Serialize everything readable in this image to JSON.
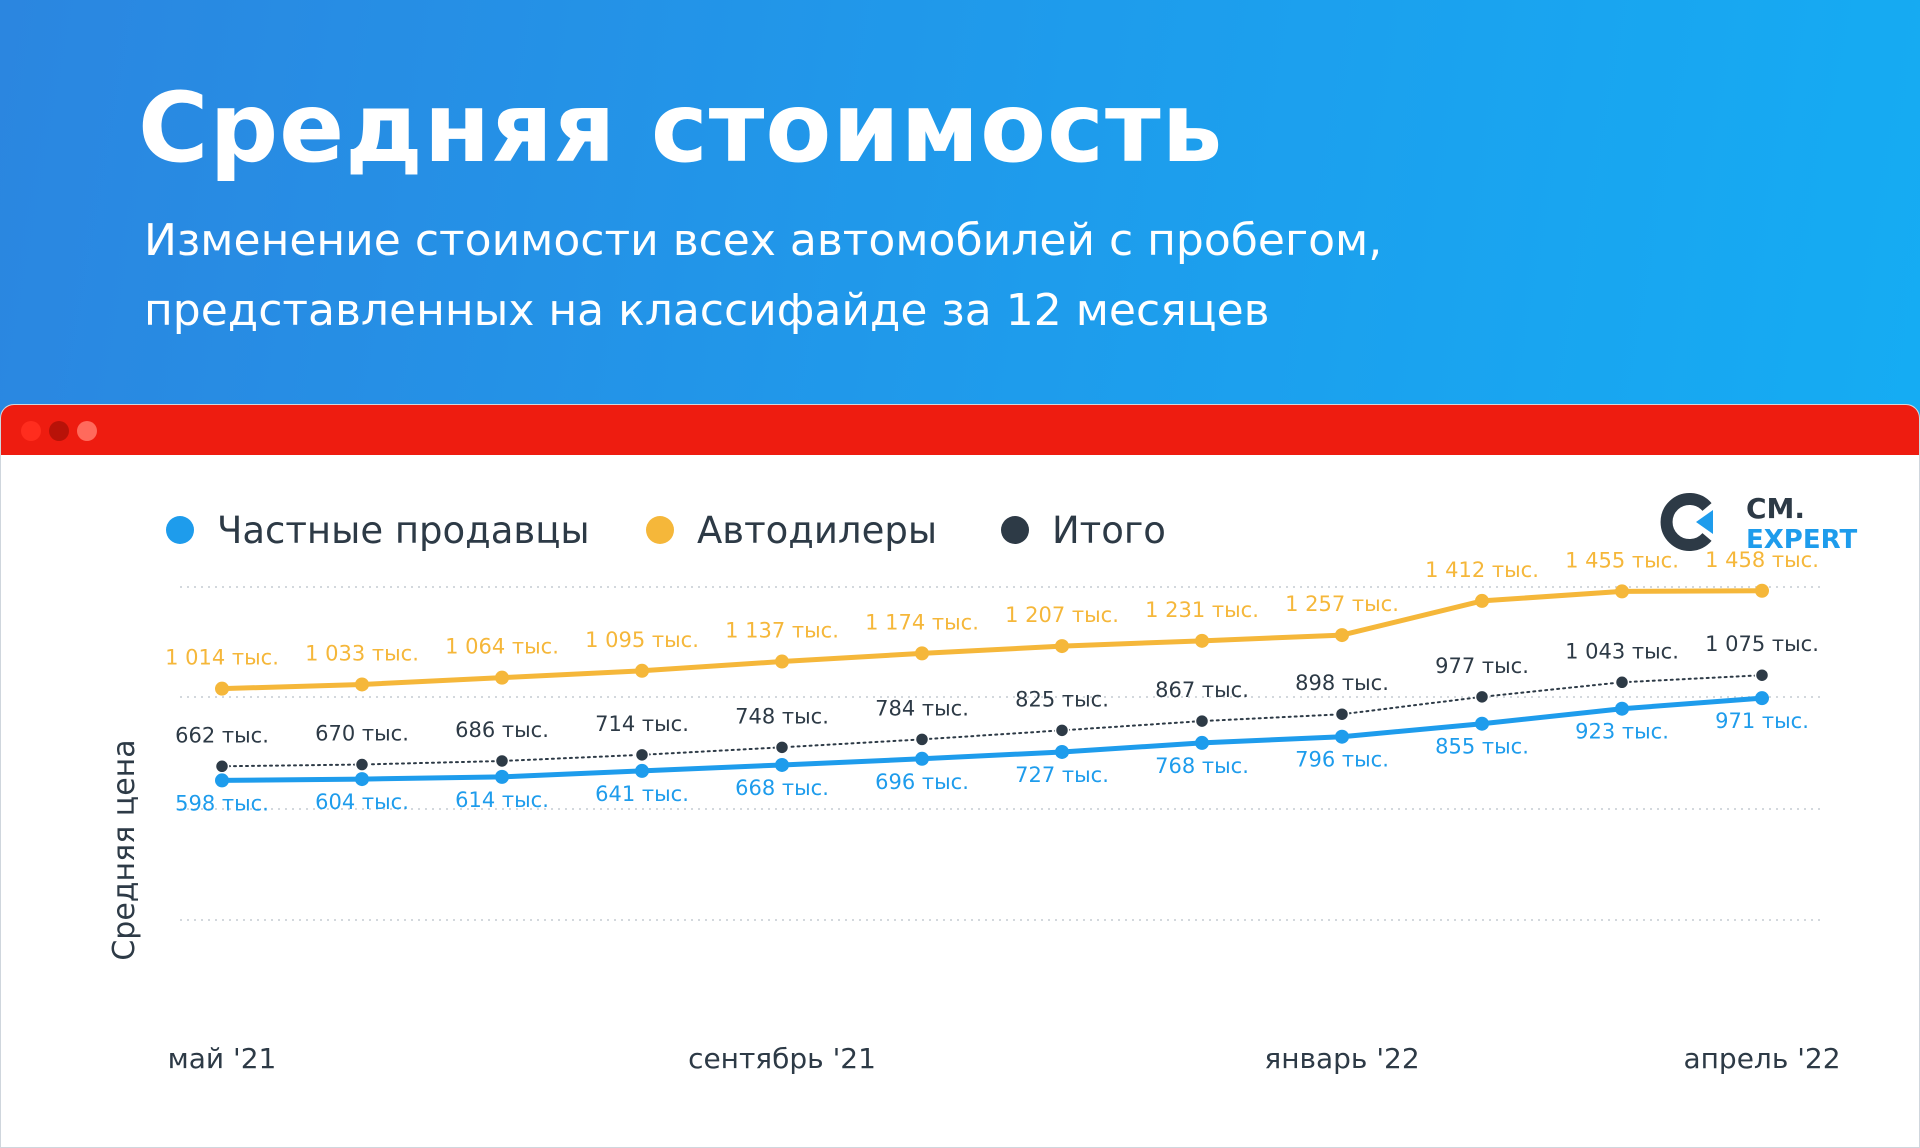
{
  "header": {
    "title": "Средняя стоимость",
    "subtitle": "Изменение стоимости всех автомобилей с пробегом, представленных на классифайде за 12 месяцев"
  },
  "logo": {
    "line1": "CM.",
    "line2": "EXPERT",
    "colors": {
      "dark": "#2d3a46",
      "accent": "#1e9cec"
    }
  },
  "colors": {
    "header_start": "#2b86e0",
    "header_end": "#15acf3",
    "window_bar": "#ee1c10"
  },
  "chart_data": {
    "type": "line",
    "title": "Средняя стоимость",
    "subtitle": "Изменение стоимости всех автомобилей с пробегом, представленных на классифайде за 12 месяцев",
    "ylabel": "Средняя цена",
    "xlabel": "",
    "ylim": [
      500,
      1500
    ],
    "grid": true,
    "legend_position": "top-left",
    "value_suffix": "тыс.",
    "x_labels": [
      {
        "index": 0,
        "label": "май '21"
      },
      {
        "index": 4,
        "label": "сентябрь '21"
      },
      {
        "index": 8,
        "label": "январь '22"
      },
      {
        "index": 11,
        "label": "апрель '22"
      }
    ],
    "series": [
      {
        "name": "Частные продавцы",
        "color": "#1e9cec",
        "style": "solid",
        "values": [
          598,
          604,
          614,
          641,
          668,
          696,
          727,
          768,
          796,
          855,
          923,
          971
        ],
        "labels": [
          "598 тыс.",
          "604 тыс.",
          "614 тыс.",
          "641 тыс.",
          "668 тыс.",
          "696 тыс.",
          "727 тыс.",
          "768 тыс.",
          "796 тыс.",
          "855 тыс.",
          "923 тыс.",
          "971 тыс."
        ]
      },
      {
        "name": "Автодилеры",
        "color": "#f5b73a",
        "style": "solid",
        "values": [
          1014,
          1033,
          1064,
          1095,
          1137,
          1174,
          1207,
          1231,
          1257,
          1412,
          1455,
          1458
        ],
        "labels": [
          "1 014 тыс.",
          "1 033 тыс.",
          "1 064 тыс.",
          "1 095 тыс.",
          "1 137 тыс.",
          "1 174 тыс.",
          "1 207 тыс.",
          "1 231 тыс.",
          "1 257 тыс.",
          "1 412 тыс.",
          "1 455 тыс.",
          "1 458 тыс."
        ]
      },
      {
        "name": "Итого",
        "color": "#2d3a46",
        "style": "dotted",
        "values": [
          662,
          670,
          686,
          714,
          748,
          784,
          825,
          867,
          898,
          977,
          1043,
          1075
        ],
        "labels": [
          "662 тыс.",
          "670 тыс.",
          "686 тыс.",
          "714 тыс.",
          "748 тыс.",
          "784 тыс.",
          "825 тыс.",
          "867 тыс.",
          "898 тыс.",
          "977 тыс.",
          "1 043 тыс.",
          "1 075 тыс."
        ]
      }
    ]
  }
}
